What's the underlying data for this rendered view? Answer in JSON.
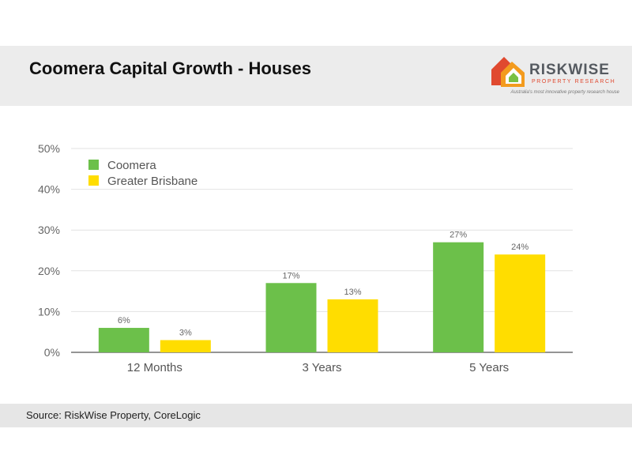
{
  "header": {
    "title": "Coomera Capital Growth - Houses",
    "logo": {
      "name": "RISKWISE",
      "subtitle": "PROPERTY RESEARCH",
      "tagline": "Australia's most innovative property research house",
      "icon": "house-logo-icon"
    }
  },
  "footer": {
    "source": "Source: RiskWise Property, CoreLogic"
  },
  "chart_data": {
    "type": "bar",
    "title": "",
    "xlabel": "",
    "ylabel": "",
    "categories": [
      "12 Months",
      "3 Years",
      "5 Years"
    ],
    "series": [
      {
        "name": "Coomera",
        "values": [
          6,
          17,
          27
        ],
        "labels": [
          "6%",
          "17%",
          "27%"
        ],
        "color": "#6cc04a"
      },
      {
        "name": "Greater Brisbane",
        "values": [
          3,
          13,
          24
        ],
        "labels": [
          "3%",
          "13%",
          "24%"
        ],
        "color": "#ffdd00"
      }
    ],
    "ylim": [
      0,
      50
    ],
    "yticks": [
      0,
      10,
      20,
      30,
      40,
      50
    ],
    "ytick_labels": [
      "0%",
      "10%",
      "20%",
      "30%",
      "40%",
      "50%"
    ],
    "grid": true,
    "legend": "top-left"
  }
}
